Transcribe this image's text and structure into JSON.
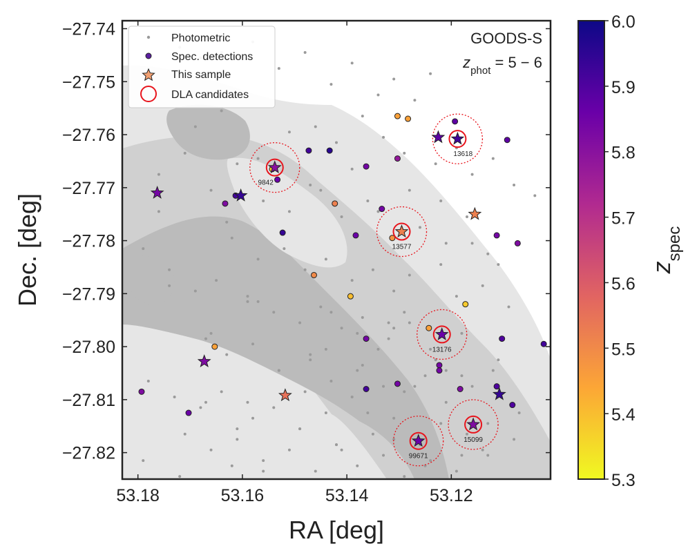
{
  "colors": {
    "contour_light": "#e6e6e6",
    "contour_mid": "#d0d0d0",
    "contour_dark": "#bbbbbb",
    "photometric": "#9a9a9a",
    "dla_circle": "#e8141c",
    "frame": "#222222",
    "plasma": [
      "#f0f921",
      "#fca636",
      "#e16462",
      "#b12a90",
      "#6a00a8",
      "#0d0887"
    ]
  },
  "chart_data": {
    "type": "scatter",
    "title": "",
    "xlabel": "RA [deg]",
    "ylabel": "Dec. [deg]",
    "xlim": [
      53.183,
      53.101
    ],
    "ylim": [
      -27.825,
      -27.7385
    ],
    "xticks": [
      53.18,
      53.16,
      53.14,
      53.12
    ],
    "xtick_labels": [
      "53.18",
      "53.16",
      "53.14",
      "53.12"
    ],
    "yticks": [
      -27.74,
      -27.75,
      -27.76,
      -27.77,
      -27.78,
      -27.79,
      -27.8,
      -27.81,
      -27.82
    ],
    "ytick_labels": [
      "−27.74",
      "−27.75",
      "−27.76",
      "−27.77",
      "−27.78",
      "−27.79",
      "−27.80",
      "−27.81",
      "−27.82"
    ],
    "field_label": "GOODS-S",
    "z_label": "z",
    "z_subscript": "phot",
    "z_range_text": " = 5 − 6",
    "colorbar": {
      "label": "z",
      "label_subscript": "spec",
      "vmin": 5.3,
      "vmax": 6.0,
      "ticks": [
        5.3,
        5.4,
        5.5,
        5.6,
        5.7,
        5.8,
        5.9,
        6.0
      ],
      "tick_labels": [
        "5.3",
        "5.4",
        "5.5",
        "5.6",
        "5.7",
        "5.8",
        "5.9",
        "6.0"
      ]
    },
    "legend": [
      {
        "label": "Photometric",
        "marker": "dot"
      },
      {
        "label": "Spec. detections",
        "marker": "circle"
      },
      {
        "label": "This sample",
        "marker": "star"
      },
      {
        "label": "DLA candidates",
        "marker": "ring"
      }
    ],
    "photometric": {
      "ra": [
        53.172,
        53.168,
        53.164,
        53.158,
        53.153,
        53.148,
        53.143,
        53.139,
        53.134,
        53.131,
        53.127,
        53.124,
        53.146,
        53.142,
        53.137,
        53.133,
        53.129,
        53.123,
        53.119,
        53.116,
        53.112,
        53.108,
        53.104,
        53.176,
        53.171,
        53.166,
        53.161,
        53.156,
        53.151,
        53.147,
        53.141,
        53.136,
        53.126,
        53.121,
        53.117,
        53.113,
        53.162,
        53.157,
        53.152,
        53.148,
        53.144,
        53.139,
        53.135,
        53.131,
        53.128,
        53.122,
        53.119,
        53.114,
        53.109,
        53.179,
        53.174,
        53.169,
        53.165,
        53.159,
        53.154,
        53.149,
        53.145,
        53.141,
        53.137,
        53.132,
        53.128,
        53.124,
        53.118,
        53.111,
        53.167,
        53.163,
        53.158,
        53.153,
        53.147,
        53.143,
        53.138,
        53.134,
        53.129,
        53.125,
        53.121,
        53.116,
        53.112,
        53.107,
        53.178,
        53.173,
        53.168,
        53.164,
        53.158,
        53.154,
        53.149,
        53.144,
        53.139,
        53.135,
        53.131,
        53.126,
        53.122,
        53.117,
        53.113,
        53.108,
        53.171,
        53.166,
        53.161,
        53.156,
        53.151,
        53.146,
        53.142,
        53.138,
        53.133,
        53.129,
        53.124,
        53.119,
        53.114,
        53.176,
        53.163,
        53.159,
        53.152,
        53.147,
        53.143,
        53.137,
        53.132,
        53.127,
        53.123,
        53.118,
        53.113,
        53.169,
        53.164,
        53.157,
        53.151,
        53.145,
        53.139,
        53.134,
        53.128,
        53.122,
        53.116,
        53.111,
        53.167,
        53.161,
        53.153,
        53.148,
        53.142,
        53.136,
        53.131,
        53.125,
        53.118,
        53.179,
        53.172,
        53.162,
        53.156,
        53.149,
        53.141,
        53.133,
        53.126,
        53.166,
        53.157,
        53.146,
        53.138,
        53.129,
        53.121,
        53.174,
        53.159,
        53.144,
        53.131
      ],
      "dec": [
        -27.7435,
        -27.7455,
        -27.7445,
        -27.7425,
        -27.7475,
        -27.7445,
        -27.7505,
        -27.7465,
        -27.7525,
        -27.7495,
        -27.7535,
        -27.7485,
        -27.7585,
        -27.7615,
        -27.7565,
        -27.7605,
        -27.7635,
        -27.7655,
        -27.7625,
        -27.7675,
        -27.7645,
        -27.7695,
        -27.7715,
        -27.7675,
        -27.7635,
        -27.7705,
        -27.7655,
        -27.7725,
        -27.7745,
        -27.7695,
        -27.7755,
        -27.7725,
        -27.7775,
        -27.7805,
        -27.7755,
        -27.7825,
        -27.7795,
        -27.7835,
        -27.7815,
        -27.7855,
        -27.7835,
        -27.7875,
        -27.7855,
        -27.7895,
        -27.7865,
        -27.7845,
        -27.7905,
        -27.7885,
        -27.7925,
        -27.7815,
        -27.7855,
        -27.7895,
        -27.7875,
        -27.7915,
        -27.7935,
        -27.7955,
        -27.7925,
        -27.7965,
        -27.7945,
        -27.7985,
        -27.7955,
        -27.8005,
        -27.7975,
        -27.8025,
        -27.7985,
        -27.8015,
        -27.7995,
        -27.8045,
        -27.8025,
        -27.8065,
        -27.8045,
        -27.8005,
        -27.8085,
        -27.8055,
        -27.8105,
        -27.8075,
        -27.8045,
        -27.8125,
        -27.8065,
        -27.8095,
        -27.8115,
        -27.8085,
        -27.8135,
        -27.8115,
        -27.8155,
        -27.8125,
        -27.8095,
        -27.8165,
        -27.8135,
        -27.8185,
        -27.8145,
        -27.8165,
        -27.8205,
        -27.8175,
        -27.8165,
        -27.8195,
        -27.8175,
        -27.8215,
        -27.8195,
        -27.8235,
        -27.8185,
        -27.8225,
        -27.8205,
        -27.8245,
        -27.8215,
        -27.8235,
        -27.8195,
        -27.7745,
        -27.7765,
        -27.7905,
        -27.7785,
        -27.8015,
        -27.7935,
        -27.8035,
        -27.7955,
        -27.8075,
        -27.8025,
        -27.8055,
        -27.8145,
        -27.7585,
        -27.7555,
        -27.7645,
        -27.7595,
        -27.7705,
        -27.7665,
        -27.7745,
        -27.7705,
        -27.7725,
        -27.7805,
        -27.7845,
        -27.8105,
        -27.8155,
        -27.8045,
        -27.8085,
        -27.8185,
        -27.8125,
        -27.8175,
        -27.8225,
        -27.8205,
        -27.8215,
        -27.8245,
        -27.8225,
        -27.8235,
        -27.8155,
        -27.8195,
        -27.8075,
        -27.8175,
        -27.7975,
        -27.7915,
        -27.7865,
        -27.7975,
        -27.7935,
        -27.8045,
        -27.7885,
        -27.8105,
        -27.8005,
        -27.7965
      ]
    },
    "spectroscopic": {
      "ra": [
        53.1543,
        53.1533,
        53.1473,
        53.1433,
        53.1363,
        53.1333,
        53.1303,
        53.1303,
        53.1283,
        53.1193,
        53.1093,
        53.1633,
        53.1613,
        53.1523,
        53.1423,
        53.1383,
        53.1313,
        53.1463,
        53.1393,
        53.1363,
        53.1243,
        53.1223,
        53.1173,
        53.1103,
        53.1023,
        53.1653,
        53.1793,
        53.1703,
        53.1363,
        53.1303,
        53.1223,
        53.1183,
        53.1113,
        53.1083,
        53.1073,
        53.1113
      ],
      "dec": [
        -27.7665,
        -27.7685,
        -27.763,
        -27.763,
        -27.766,
        -27.774,
        -27.7565,
        -27.7645,
        -27.757,
        -27.7575,
        -27.761,
        -27.773,
        -27.7715,
        -27.7785,
        -27.773,
        -27.779,
        -27.7795,
        -27.7865,
        -27.7905,
        -27.7985,
        -27.7965,
        -27.8035,
        -27.792,
        -27.7985,
        -27.7995,
        -27.8,
        -27.8085,
        -27.8125,
        -27.808,
        -27.807,
        -27.8045,
        -27.808,
        -27.8075,
        -27.811,
        -27.7805,
        -27.779
      ],
      "z": [
        5.38,
        5.86,
        5.92,
        5.96,
        5.84,
        5.84,
        5.45,
        5.78,
        5.45,
        5.88,
        5.88,
        5.82,
        5.92,
        5.94,
        5.52,
        5.86,
        5.48,
        5.5,
        5.4,
        5.84,
        5.45,
        5.84,
        5.38,
        5.9,
        5.92,
        5.45,
        5.82,
        5.86,
        5.92,
        5.84,
        5.84,
        5.82,
        5.9,
        5.9,
        5.82,
        5.84
      ]
    },
    "sample": {
      "ra": [
        53.1538,
        53.1188,
        53.1225,
        53.1763,
        53.1603,
        53.1295,
        53.1155,
        53.1218,
        53.1673,
        53.1108,
        53.1518,
        53.1263,
        53.1158
      ],
      "dec": [
        -27.7662,
        -27.7608,
        -27.7605,
        -27.771,
        -27.7715,
        -27.7783,
        -27.775,
        -27.7977,
        -27.8028,
        -27.809,
        -27.8092,
        -27.8178,
        -27.8147
      ],
      "z": [
        5.8,
        5.92,
        5.88,
        5.84,
        5.94,
        5.52,
        5.52,
        5.86,
        5.82,
        5.94,
        5.55,
        5.86,
        5.82
      ]
    },
    "dla_candidates": [
      {
        "id": "9842",
        "ra": 53.1538,
        "dec": -27.7662,
        "label_pos": "below-left"
      },
      {
        "id": "13618",
        "ra": 53.1188,
        "dec": -27.7608,
        "label_pos": "below-right"
      },
      {
        "id": "13577",
        "ra": 53.1295,
        "dec": -27.7783,
        "label_pos": "below"
      },
      {
        "id": "13176",
        "ra": 53.1218,
        "dec": -27.7977,
        "label_pos": "below"
      },
      {
        "id": "15099",
        "ra": 53.1158,
        "dec": -27.8147,
        "label_pos": "below"
      },
      {
        "id": "99671",
        "ra": 53.1263,
        "dec": -27.8178,
        "label_pos": "below"
      }
    ]
  }
}
